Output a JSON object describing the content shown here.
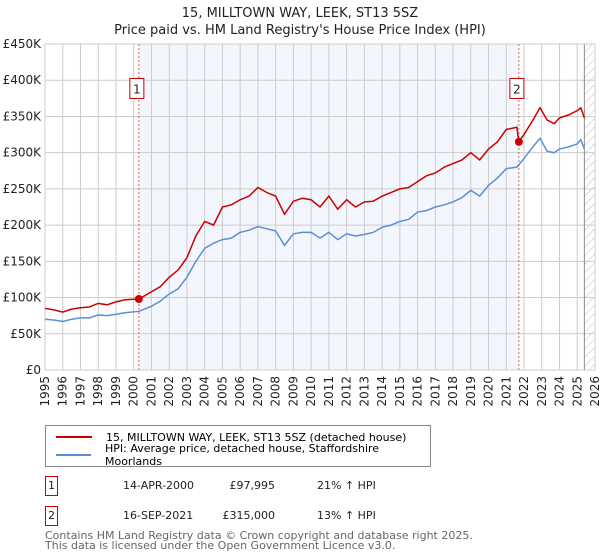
{
  "chart_data": {
    "type": "line",
    "title": "15, MILLTOWN WAY, LEEK, ST13 5SZ",
    "subtitle": "Price paid vs. HM Land Registry's House Price Index (HPI)",
    "xlim": [
      1995,
      2026
    ],
    "ylim": [
      0,
      450000
    ],
    "y_ticks": [
      {
        "v": 0,
        "label": "£0"
      },
      {
        "v": 50000,
        "label": "£50K"
      },
      {
        "v": 100000,
        "label": "£100K"
      },
      {
        "v": 150000,
        "label": "£150K"
      },
      {
        "v": 200000,
        "label": "£200K"
      },
      {
        "v": 250000,
        "label": "£250K"
      },
      {
        "v": 300000,
        "label": "£300K"
      },
      {
        "v": 350000,
        "label": "£350K"
      },
      {
        "v": 400000,
        "label": "£400K"
      },
      {
        "v": 450000,
        "label": "£450K"
      }
    ],
    "x_ticks": [
      "1995",
      "1996",
      "1997",
      "1998",
      "1999",
      "2000",
      "2001",
      "2002",
      "2003",
      "2004",
      "2005",
      "2006",
      "2007",
      "2008",
      "2009",
      "2010",
      "2011",
      "2012",
      "2013",
      "2014",
      "2015",
      "2016",
      "2017",
      "2018",
      "2019",
      "2020",
      "2021",
      "2022",
      "2023",
      "2024",
      "2025",
      "2026"
    ],
    "grid": true,
    "series": [
      {
        "name": "15, MILLTOWN WAY, LEEK, ST13 5SZ (detached house)",
        "color": "#cc0000",
        "x": [
          1995,
          1995.5,
          1996,
          1996.5,
          1997,
          1997.5,
          1998,
          1998.5,
          1999,
          1999.5,
          2000.3,
          2001,
          2001.5,
          2002,
          2002.5,
          2003,
          2003.5,
          2004,
          2004.5,
          2005,
          2005.5,
          2006,
          2006.5,
          2007,
          2007.5,
          2008,
          2008.5,
          2009,
          2009.5,
          2010,
          2010.5,
          2011,
          2011.5,
          2012,
          2012.5,
          2013,
          2013.5,
          2014,
          2014.5,
          2015,
          2015.5,
          2016,
          2016.5,
          2017,
          2017.5,
          2018,
          2018.5,
          2019,
          2019.5,
          2020,
          2020.5,
          2021,
          2021.6,
          2021.7,
          2022,
          2022.5,
          2022.9,
          2023.3,
          2023.7,
          2024,
          2024.5,
          2025,
          2025.2,
          2025.4
        ],
        "y": [
          85000,
          83000,
          80000,
          84000,
          86000,
          87000,
          92000,
          90000,
          94000,
          97000,
          98000,
          108000,
          115000,
          128000,
          138000,
          155000,
          185000,
          205000,
          200000,
          225000,
          228000,
          235000,
          240000,
          252000,
          245000,
          240000,
          215000,
          233000,
          237000,
          235000,
          225000,
          240000,
          222000,
          235000,
          225000,
          232000,
          233000,
          240000,
          245000,
          250000,
          252000,
          260000,
          268000,
          272000,
          280000,
          285000,
          290000,
          300000,
          290000,
          305000,
          315000,
          332000,
          335000,
          315000,
          325000,
          345000,
          362000,
          345000,
          340000,
          348000,
          352000,
          358000,
          362000,
          348000
        ]
      },
      {
        "name": "HPI: Average price, detached house, Staffordshire Moorlands",
        "color": "#5b8fd4",
        "x": [
          1995,
          1995.5,
          1996,
          1996.5,
          1997,
          1997.5,
          1998,
          1998.5,
          1999,
          1999.5,
          2000.3,
          2001,
          2001.5,
          2002,
          2002.5,
          2003,
          2003.5,
          2004,
          2004.5,
          2005,
          2005.5,
          2006,
          2006.5,
          2007,
          2007.5,
          2008,
          2008.5,
          2009,
          2009.5,
          2010,
          2010.5,
          2011,
          2011.5,
          2012,
          2012.5,
          2013,
          2013.5,
          2014,
          2014.5,
          2015,
          2015.5,
          2016,
          2016.5,
          2017,
          2017.5,
          2018,
          2018.5,
          2019,
          2019.5,
          2020,
          2020.5,
          2021,
          2021.6,
          2021.7,
          2022,
          2022.5,
          2022.9,
          2023.3,
          2023.7,
          2024,
          2024.5,
          2025,
          2025.2,
          2025.4
        ],
        "y": [
          70000,
          69000,
          67000,
          70000,
          72000,
          72000,
          76000,
          75000,
          77000,
          79000,
          81000,
          88000,
          95000,
          105000,
          112000,
          128000,
          150000,
          168000,
          175000,
          180000,
          182000,
          190000,
          193000,
          198000,
          195000,
          192000,
          172000,
          188000,
          190000,
          190000,
          182000,
          190000,
          180000,
          188000,
          185000,
          187000,
          190000,
          197000,
          200000,
          205000,
          208000,
          218000,
          220000,
          225000,
          228000,
          232000,
          238000,
          248000,
          240000,
          255000,
          265000,
          278000,
          280000,
          283000,
          292000,
          308000,
          320000,
          302000,
          300000,
          305000,
          308000,
          312000,
          318000,
          305000
        ]
      }
    ],
    "markers": [
      {
        "label": "1",
        "x": 2000.29,
        "y": 97995
      },
      {
        "label": "2",
        "x": 2021.71,
        "y": 315000
      }
    ],
    "shaded_range": [
      2000.29,
      2021.71
    ],
    "hatched_after": 2025.4,
    "legend_position": "bottom"
  },
  "sales": [
    {
      "num": "1",
      "date": "14-APR-2000",
      "price": "£97,995",
      "hpi": "21% ↑ HPI"
    },
    {
      "num": "2",
      "date": "16-SEP-2021",
      "price": "£315,000",
      "hpi": "13% ↑ HPI"
    }
  ],
  "footer": {
    "line1": "Contains HM Land Registry data © Crown copyright and database right 2025.",
    "line2": "This data is licensed under the Open Government Licence v3.0."
  }
}
